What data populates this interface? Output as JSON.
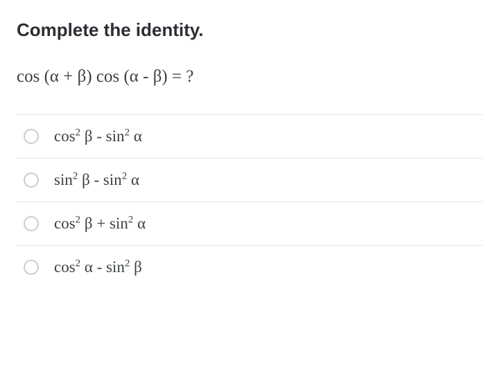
{
  "title": "Complete the identity.",
  "expression": "cos (α + β) cos (α - β) = ?",
  "options": [
    {
      "html": "cos<sup>2</sup> β - sin<sup>2</sup> α",
      "selected": false
    },
    {
      "html": "sin<sup>2</sup> β - sin<sup>2</sup> α",
      "selected": false
    },
    {
      "html": "cos<sup>2</sup> β + sin<sup>2</sup> α",
      "selected": false
    },
    {
      "html": "cos<sup>2</sup> α - sin<sup>2</sup> β",
      "selected": false
    }
  ],
  "colors": {
    "text": "#2b2f33",
    "muted": "#3a3f44",
    "divider": "#e2e5e8",
    "radio_border": "#c9ccd0",
    "background": "#ffffff"
  },
  "typography": {
    "title_fontsize": 26,
    "title_weight": 700,
    "expression_fontsize": 25,
    "option_fontsize": 23
  }
}
